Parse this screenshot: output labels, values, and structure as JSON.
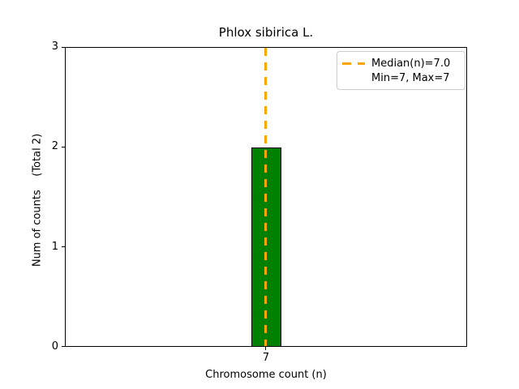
{
  "title": "Phlox sibirica L.",
  "axes": {
    "xlabel": "Chromosome count (n)",
    "ylabel": "Num of counts    (Total 2)",
    "yticks": [
      "0",
      "1",
      "2",
      "3"
    ],
    "xticks": [
      "7"
    ]
  },
  "legend": {
    "median_label": "Median(n)=7.0",
    "minmax_label": "Min=7, Max=7"
  },
  "colors": {
    "bar_fill": "#008000",
    "bar_edge": "#000000",
    "median_line": "#ffa500",
    "axis": "#000000",
    "legend_border": "#cccccc",
    "background": "#ffffff"
  },
  "chart_data": {
    "type": "bar",
    "title": "Phlox sibirica L.",
    "xlabel": "Chromosome count (n)",
    "ylabel": "Num of counts    (Total 2)",
    "categories": [
      7
    ],
    "values": [
      2
    ],
    "total_counts": 2,
    "ylim": [
      0,
      3
    ],
    "yticks": [
      0,
      1,
      2,
      3
    ],
    "median_n": 7.0,
    "min_n": 7,
    "max_n": 7,
    "legend_entries": [
      "Median(n)=7.0",
      "Min=7, Max=7"
    ],
    "legend_position": "upper right",
    "grid": false,
    "bar_color": "#008000",
    "median_line_style": "dashed",
    "median_line_color": "#ffa500"
  }
}
